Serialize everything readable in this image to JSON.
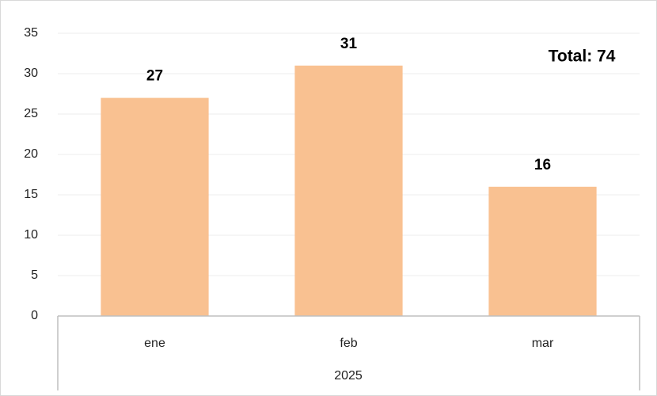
{
  "chart_data": {
    "type": "bar",
    "categories": [
      "ene",
      "feb",
      "mar"
    ],
    "values": [
      27,
      31,
      16
    ],
    "color": "#f9c191",
    "ylim": [
      0,
      35
    ],
    "yticks": [
      0,
      5,
      10,
      15,
      20,
      25,
      30,
      35
    ],
    "grid": true,
    "annotation": "Total: 74",
    "group_label": "2025"
  }
}
